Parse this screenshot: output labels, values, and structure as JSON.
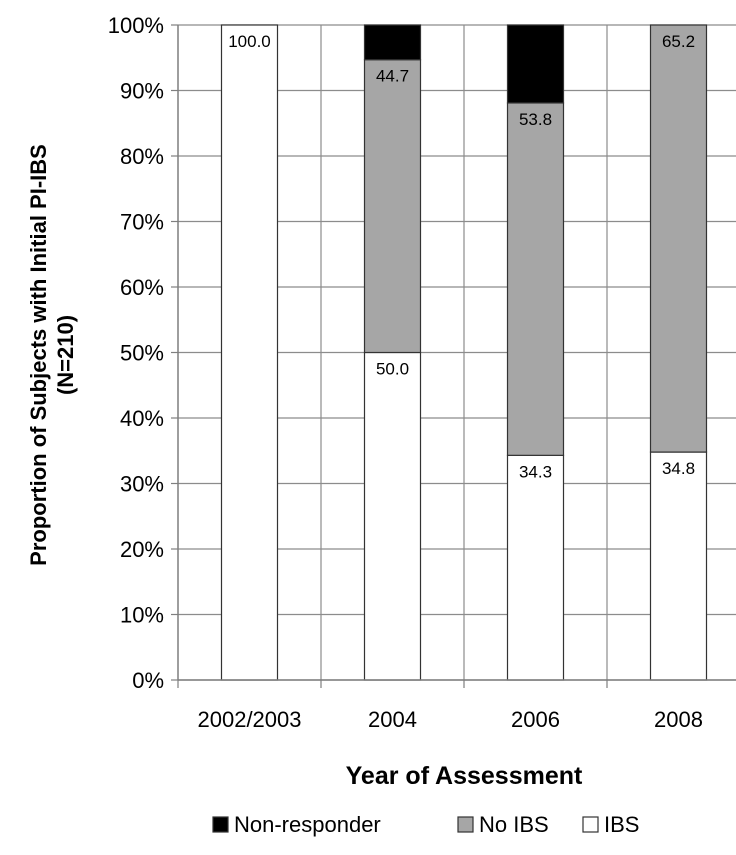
{
  "chart_data": {
    "type": "bar",
    "stacked": true,
    "percent_stacked": true,
    "title": "",
    "xlabel": "Year of Assessment",
    "ylabel_line1": "Proportion of  Subjects with Initial PI-IBS",
    "ylabel_line2": "(N=210)",
    "categories": [
      "2002/2003",
      "2004",
      "2006",
      "2008"
    ],
    "series": [
      {
        "name": "IBS",
        "values": [
          100.0,
          50.0,
          34.3,
          34.8
        ],
        "color": "#ffffff"
      },
      {
        "name": "No IBS",
        "values": [
          0,
          44.7,
          53.8,
          65.2
        ],
        "color": "#a6a6a6"
      },
      {
        "name": "Non-responder",
        "values": [
          0,
          5.3,
          11.9,
          0
        ],
        "color": "#000000"
      }
    ],
    "data_labels": [
      {
        "category": "2002/2003",
        "series": "IBS",
        "text": "100.0"
      },
      {
        "category": "2004",
        "series": "IBS",
        "text": "50.0"
      },
      {
        "category": "2004",
        "series": "No IBS",
        "text": "44.7"
      },
      {
        "category": "2006",
        "series": "IBS",
        "text": "34.3"
      },
      {
        "category": "2006",
        "series": "No IBS",
        "text": "53.8"
      },
      {
        "category": "2008",
        "series": "IBS",
        "text": "34.8"
      },
      {
        "category": "2008",
        "series": "No IBS",
        "text": "65.2"
      }
    ],
    "ylim": [
      0,
      100
    ],
    "yticks": [
      "0%",
      "10%",
      "20%",
      "30%",
      "40%",
      "50%",
      "60%",
      "70%",
      "80%",
      "90%",
      "100%"
    ],
    "grid": true,
    "legend": {
      "position": "bottom",
      "order": [
        "Non-responder",
        "No IBS",
        "IBS"
      ]
    }
  }
}
